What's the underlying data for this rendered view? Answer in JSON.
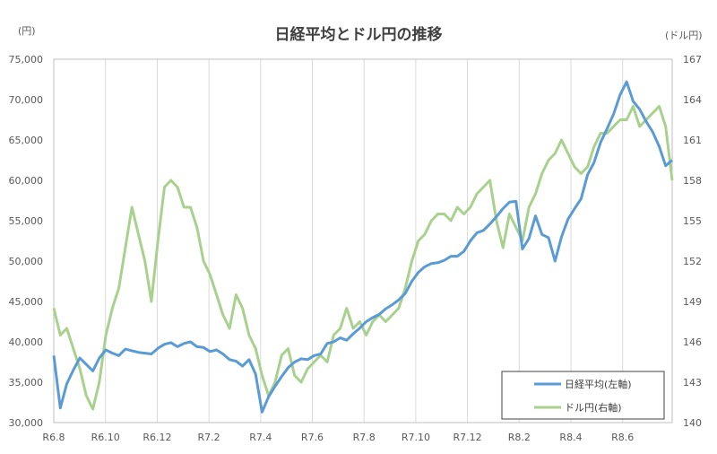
{
  "chart_data": {
    "type": "line",
    "title": "日経平均とドル円の推移",
    "left_axis_unit": "(円)",
    "right_axis_unit": "(ドル円)",
    "x_tick_labels": [
      "R6.8",
      "R6.10",
      "R6.12",
      "R7.2",
      "R7.4",
      "R7.6",
      "R7.8",
      "R7.10",
      "R7.12",
      "R8.2",
      "R8.4",
      "R8.6"
    ],
    "y_left": {
      "ylim": [
        30000,
        75000
      ],
      "ticks": [
        "30,000",
        "35,000",
        "40,000",
        "45,000",
        "50,000",
        "55,000",
        "60,000",
        "65,000",
        "70,000",
        "75,000"
      ]
    },
    "y_right": {
      "ylim": [
        140,
        167
      ],
      "ticks": [
        "140",
        "143",
        "146",
        "149",
        "152",
        "155",
        "158",
        "161",
        "164",
        "167"
      ]
    },
    "grid": "vertical",
    "legend_position": "bottom-right",
    "colors": {
      "nikkei": "#5b9bd5",
      "usdjpy": "#a9d18e",
      "grid": "#d9d9d9",
      "axis": "#595959"
    },
    "series": [
      {
        "name": "日経平均(左軸)",
        "axis": "left",
        "x": [
          "R6.8",
          "R6.8",
          "R6.8",
          "R6.8",
          "R6.9",
          "R6.9",
          "R6.9",
          "R6.9",
          "R6.10",
          "R6.10",
          "R6.10",
          "R6.10",
          "R6.11",
          "R6.11",
          "R6.11",
          "R6.11",
          "R6.12",
          "R6.12",
          "R6.12",
          "R6.12",
          "R7.1",
          "R7.1",
          "R7.1",
          "R7.1",
          "R7.2",
          "R7.2",
          "R7.2",
          "R7.2",
          "R7.3",
          "R7.3",
          "R7.3",
          "R7.3",
          "R7.4",
          "R7.4",
          "R7.4",
          "R7.4",
          "R7.5",
          "R7.5",
          "R7.5",
          "R7.5",
          "R7.6",
          "R7.6",
          "R7.6",
          "R7.6",
          "R7.7",
          "R7.7",
          "R7.7",
          "R7.7",
          "R7.8",
          "R7.8",
          "R7.8",
          "R7.8",
          "R7.9",
          "R7.9",
          "R7.9",
          "R7.9",
          "R7.10",
          "R7.10",
          "R7.10",
          "R7.10",
          "R7.11",
          "R7.11",
          "R7.11",
          "R7.11",
          "R7.12",
          "R7.12",
          "R7.12",
          "R7.12",
          "R8.1",
          "R8.1",
          "R8.1",
          "R8.1",
          "R8.2",
          "R8.2",
          "R8.2",
          "R8.2",
          "R8.3",
          "R8.3",
          "R8.3",
          "R8.3",
          "R8.4",
          "R8.4",
          "R8.4",
          "R8.4",
          "R8.5",
          "R8.5",
          "R8.5",
          "R8.5",
          "R8.6",
          "R8.6",
          "R8.6",
          "R8.6",
          "R8.7",
          "R8.7",
          "R8.7",
          "R8.7"
        ],
        "values": [
          38300,
          31800,
          34800,
          36500,
          38000,
          37200,
          36400,
          38000,
          39000,
          38600,
          38300,
          39100,
          38900,
          38700,
          38600,
          38500,
          39200,
          39700,
          39900,
          39400,
          39800,
          40000,
          39400,
          39300,
          38800,
          39000,
          38500,
          37800,
          37600,
          37000,
          37800,
          36000,
          31300,
          33200,
          34500,
          35700,
          36800,
          37500,
          37900,
          37800,
          38300,
          38500,
          39800,
          40000,
          40500,
          40200,
          41000,
          41700,
          42500,
          43000,
          43400,
          44100,
          44600,
          45200,
          46000,
          47500,
          48600,
          49300,
          49700,
          49800,
          50100,
          50600,
          50600,
          51200,
          52500,
          53500,
          53800,
          54600,
          55500,
          56500,
          57300,
          57400,
          51500,
          52800,
          55600,
          53300,
          52900,
          50000,
          53000,
          55200,
          56500,
          57700,
          60700,
          62200,
          64700,
          66400,
          68200,
          70600,
          72200,
          69800,
          68800,
          67300,
          66000,
          64200,
          61800,
          62500
        ]
      },
      {
        "name": "ドル円(右軸)",
        "axis": "right",
        "x": [
          "R6.8",
          "R6.8",
          "R6.8",
          "R6.8",
          "R6.9",
          "R6.9",
          "R6.9",
          "R6.9",
          "R6.10",
          "R6.10",
          "R6.10",
          "R6.10",
          "R6.11",
          "R6.11",
          "R6.11",
          "R6.11",
          "R6.12",
          "R6.12",
          "R6.12",
          "R6.12",
          "R7.1",
          "R7.1",
          "R7.1",
          "R7.1",
          "R7.2",
          "R7.2",
          "R7.2",
          "R7.2",
          "R7.3",
          "R7.3",
          "R7.3",
          "R7.3",
          "R7.4",
          "R7.4",
          "R7.4",
          "R7.4",
          "R7.5",
          "R7.5",
          "R7.5",
          "R7.5",
          "R7.6",
          "R7.6",
          "R7.6",
          "R7.6",
          "R7.7",
          "R7.7",
          "R7.7",
          "R7.7",
          "R7.8",
          "R7.8",
          "R7.8",
          "R7.8",
          "R7.9",
          "R7.9",
          "R7.9",
          "R7.9",
          "R7.10",
          "R7.10",
          "R7.10",
          "R7.10",
          "R7.11",
          "R7.11",
          "R7.11",
          "R7.11",
          "R7.12",
          "R7.12",
          "R7.12",
          "R7.12",
          "R8.1",
          "R8.1",
          "R8.1",
          "R8.1",
          "R8.2",
          "R8.2",
          "R8.2",
          "R8.2",
          "R8.3",
          "R8.3",
          "R8.3",
          "R8.3",
          "R8.4",
          "R8.4",
          "R8.4",
          "R8.4",
          "R8.5",
          "R8.5",
          "R8.5",
          "R8.5",
          "R8.6",
          "R8.6",
          "R8.6",
          "R8.6",
          "R8.7",
          "R8.7",
          "R8.7",
          "R8.7"
        ],
        "values": [
          148.5,
          146.5,
          147.0,
          145.5,
          144.0,
          142.0,
          141.0,
          143.0,
          146.5,
          148.5,
          150.0,
          153.0,
          156.0,
          154.0,
          152.0,
          149.0,
          153.5,
          157.5,
          158.0,
          157.5,
          156.0,
          156.0,
          154.5,
          152.0,
          151.0,
          149.5,
          148.0,
          147.0,
          149.5,
          148.5,
          146.5,
          145.5,
          143.5,
          142.0,
          143.0,
          145.0,
          145.5,
          143.5,
          143.0,
          144.0,
          144.5,
          145.0,
          144.5,
          146.5,
          147.0,
          148.5,
          147.0,
          147.5,
          146.5,
          147.5,
          148.0,
          147.5,
          148.0,
          148.5,
          150.0,
          152.0,
          153.5,
          154.0,
          155.0,
          155.5,
          155.5,
          155.0,
          156.0,
          155.5,
          156.0,
          157.0,
          157.5,
          158.0,
          155.0,
          153.0,
          155.5,
          154.5,
          153.5,
          156.0,
          157.0,
          158.5,
          159.5,
          160.0,
          161.0,
          160.0,
          159.0,
          158.5,
          159.0,
          160.5,
          161.5,
          161.5,
          162.0,
          162.5,
          162.5,
          163.5,
          162.0,
          162.5,
          163.0,
          163.5,
          162.0,
          158.0
        ]
      }
    ]
  }
}
